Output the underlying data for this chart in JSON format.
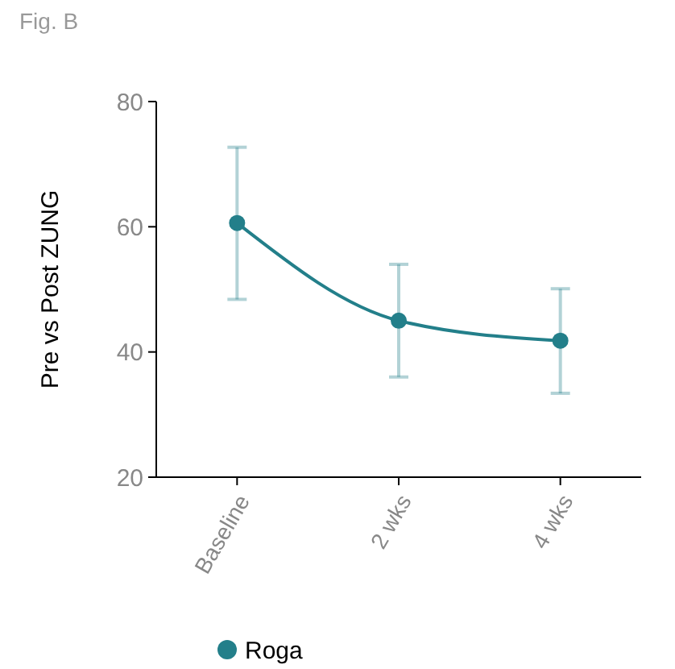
{
  "chart_data": {
    "type": "line",
    "title": "Fig. B",
    "ylabel": "Pre vs Post ZUNG",
    "categories": [
      "Baseline",
      "2 wks",
      "4 wks"
    ],
    "series": [
      {
        "name": "Roga",
        "color": "#237f8a",
        "values": [
          60.6,
          45.0,
          41.8
        ],
        "errors": [
          [
            48.4,
            72.7
          ],
          [
            36.0,
            54.0
          ],
          [
            33.4,
            50.1
          ]
        ]
      }
    ],
    "ylim": [
      20,
      80
    ],
    "yticks": [
      20,
      40,
      60,
      80
    ],
    "grid": false,
    "legend": "bottom left",
    "marker": "circle",
    "line_style": "solid"
  }
}
